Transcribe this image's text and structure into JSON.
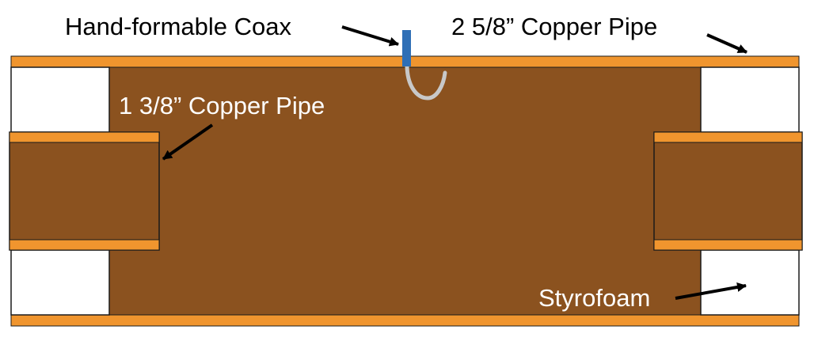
{
  "labels": {
    "coax": "Hand-formable Coax",
    "outer_pipe": "2 5/8” Copper Pipe",
    "inner_pipe": "1 3/8” Copper Pipe",
    "styrofoam": "Styrofoam"
  },
  "colors": {
    "copper_wall": "#f0952e",
    "cavity_fill": "#8b521f",
    "styrofoam": "#ffffff",
    "outline": "#1a1a1a",
    "coax_connector": "#2f6fb6",
    "coax_cable": "#c8c8c8",
    "label_dark": "#000000",
    "label_light": "#ffffff"
  }
}
